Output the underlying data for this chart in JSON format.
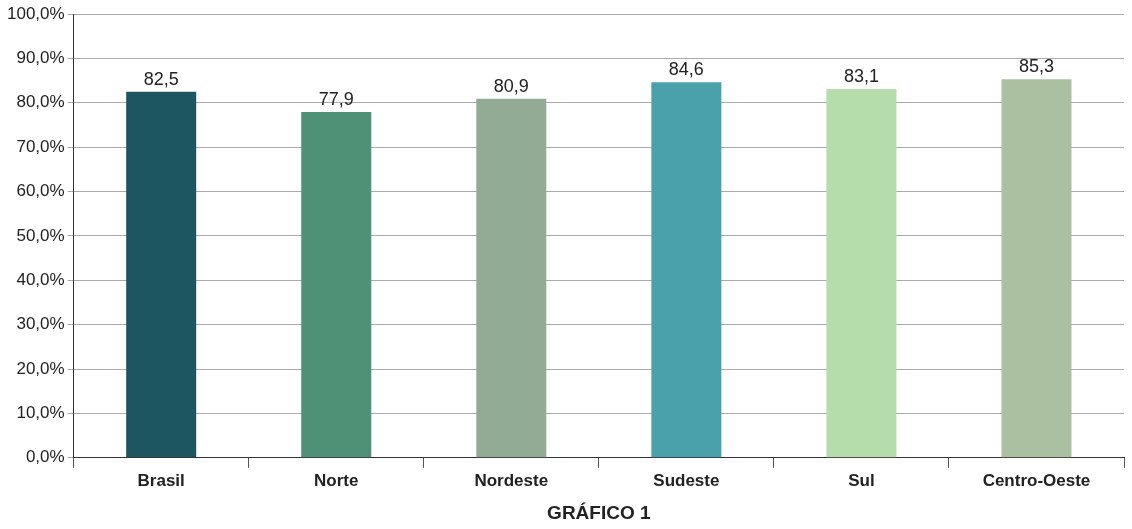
{
  "chart_data": {
    "type": "bar",
    "xlabel": "GRÁFICO 1",
    "categories": [
      "Brasil",
      "Norte",
      "Nordeste",
      "Sudeste",
      "Sul",
      "Centro-Oeste"
    ],
    "values": [
      82.5,
      77.9,
      80.9,
      84.6,
      83.1,
      85.3
    ],
    "value_labels": [
      "82,5",
      "77,9",
      "80,9",
      "84,6",
      "83,1",
      "85,3"
    ],
    "colors": [
      "#1d5560",
      "#4f9177",
      "#92ab94",
      "#4aa0ab",
      "#b5dcab",
      "#abc0a1"
    ],
    "ylim": [
      0,
      100
    ],
    "yticks": [
      {
        "value": 0,
        "label": "0,0%"
      },
      {
        "value": 10,
        "label": "10,0%"
      },
      {
        "value": 20,
        "label": "20,0%"
      },
      {
        "value": 30,
        "label": "30,0%"
      },
      {
        "value": 40,
        "label": "40,0%"
      },
      {
        "value": 50,
        "label": "50,0%"
      },
      {
        "value": 60,
        "label": "60,0%"
      },
      {
        "value": 70,
        "label": "70,0%"
      },
      {
        "value": 80,
        "label": "80,0%"
      },
      {
        "value": 90,
        "label": "90,0%"
      },
      {
        "value": 100,
        "label": "100,0%"
      }
    ],
    "grid": "y"
  }
}
